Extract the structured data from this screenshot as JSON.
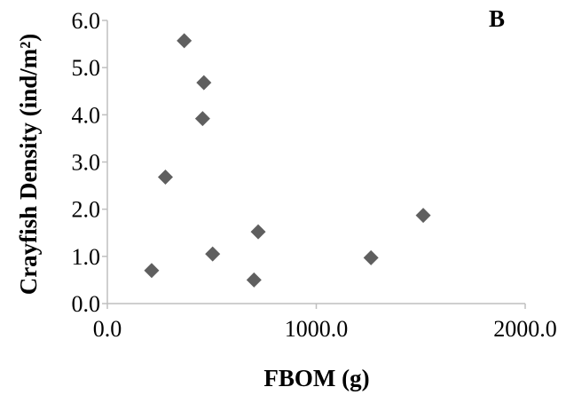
{
  "chart_data": {
    "type": "scatter",
    "panel_label": "B",
    "xlabel": "FBOM (g)",
    "ylabel": "Crayfish Density (ind/m²)",
    "xlim": [
      0,
      2000
    ],
    "ylim": [
      0,
      6
    ],
    "x_ticks": [
      0,
      1000,
      2000
    ],
    "x_tick_labels": [
      "0.0",
      "1000.0",
      "2000.0"
    ],
    "y_ticks": [
      0,
      1,
      2,
      3,
      4,
      5,
      6
    ],
    "y_tick_labels": [
      "0.0",
      "1.0",
      "2.0",
      "3.0",
      "4.0",
      "5.0",
      "6.0"
    ],
    "grid": false,
    "legend": "none",
    "marker": "diamond",
    "marker_color": "#5f5f5f",
    "axis_color": "#bfbfbf",
    "points": [
      {
        "x": 368,
        "y": 5.57
      },
      {
        "x": 462,
        "y": 4.68
      },
      {
        "x": 456,
        "y": 3.92
      },
      {
        "x": 278,
        "y": 2.68
      },
      {
        "x": 212,
        "y": 0.7
      },
      {
        "x": 504,
        "y": 1.05
      },
      {
        "x": 702,
        "y": 0.5
      },
      {
        "x": 722,
        "y": 1.52
      },
      {
        "x": 1262,
        "y": 0.97
      },
      {
        "x": 1512,
        "y": 1.87
      }
    ]
  }
}
